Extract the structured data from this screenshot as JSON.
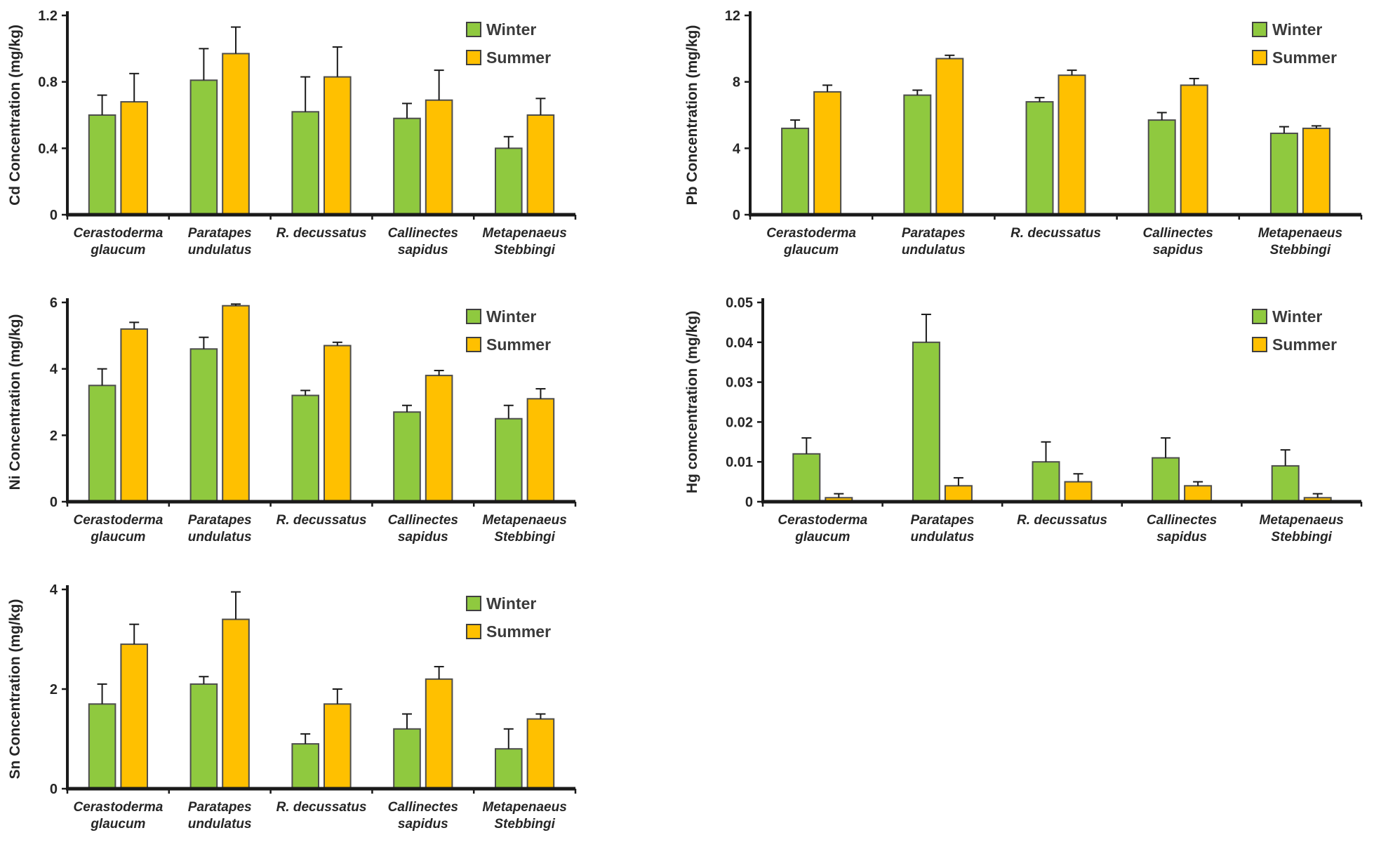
{
  "colors": {
    "winter": "#8FC93F",
    "summer": "#FFC000",
    "bar_outline": "#4d4d4d",
    "axis": "#1a1a1a",
    "text": "#262626",
    "legend_text": "#3b3b3b"
  },
  "legend": {
    "winter_label": "Winter",
    "summer_label": "Summer"
  },
  "chart_data": [
    {
      "type": "bar",
      "title": "",
      "ylabel": "Cd Concentration (mg/kg)",
      "xlabel": "",
      "ylim": [
        0,
        1.2
      ],
      "ytick_labels": [
        "0",
        "0.4",
        "0.8",
        "1.2"
      ],
      "grid": false,
      "legend_position": "top-right",
      "categories": [
        "Cerastoderma glaucum",
        "Paratapes undulatus",
        "R. decussatus",
        "Callinectes sapidus",
        "Metapenaeus Stebbingi"
      ],
      "category_label_lines": [
        [
          "Cerastoderma",
          "glaucum"
        ],
        [
          "Paratapes",
          "undulatus"
        ],
        [
          "R. decussatus"
        ],
        [
          "Callinectes",
          "sapidus"
        ],
        [
          "Metapenaeus",
          "Stebbingi"
        ]
      ],
      "series": [
        {
          "name": "Winter",
          "color_key": "winter",
          "values": [
            0.6,
            0.81,
            0.62,
            0.58,
            0.4
          ],
          "errors": [
            0.12,
            0.19,
            0.21,
            0.09,
            0.07
          ]
        },
        {
          "name": "Summer",
          "color_key": "summer",
          "values": [
            0.68,
            0.97,
            0.83,
            0.69,
            0.6
          ],
          "errors": [
            0.17,
            0.16,
            0.18,
            0.18,
            0.1
          ]
        }
      ]
    },
    {
      "type": "bar",
      "title": "",
      "ylabel": "Pb Concentration (mg/kg)",
      "xlabel": "",
      "ylim": [
        0,
        12
      ],
      "ytick_labels": [
        "0",
        "4",
        "8",
        "12"
      ],
      "grid": false,
      "legend_position": "top-right",
      "categories": [
        "Cerastoderma glaucum",
        "Paratapes undulatus",
        "R. decussatus",
        "Callinectes sapidus",
        "Metapenaeus Stebbingi"
      ],
      "category_label_lines": [
        [
          "Cerastoderma",
          "glaucum"
        ],
        [
          "Paratapes",
          "undulatus"
        ],
        [
          "R. decussatus"
        ],
        [
          "Callinectes",
          "sapidus"
        ],
        [
          "Metapenaeus",
          "Stebbingi"
        ]
      ],
      "series": [
        {
          "name": "Winter",
          "color_key": "winter",
          "values": [
            5.2,
            7.2,
            6.8,
            5.7,
            4.9
          ],
          "errors": [
            0.5,
            0.3,
            0.25,
            0.45,
            0.4
          ]
        },
        {
          "name": "Summer",
          "color_key": "summer",
          "values": [
            7.4,
            9.4,
            8.4,
            7.8,
            5.2
          ],
          "errors": [
            0.4,
            0.2,
            0.3,
            0.4,
            0.15
          ]
        }
      ]
    },
    {
      "type": "bar",
      "title": "",
      "ylabel": "Ni Concentration (mg/kg)",
      "xlabel": "",
      "ylim": [
        0,
        6
      ],
      "ytick_labels": [
        "0",
        "2",
        "4",
        "6"
      ],
      "grid": false,
      "legend_position": "top-right",
      "categories": [
        "Cerastoderma glaucum",
        "Paratapes undulatus",
        "R. decussatus",
        "Callinectes sapidus",
        "Metapenaeus Stebbingi"
      ],
      "category_label_lines": [
        [
          "Cerastoderma",
          "glaucum"
        ],
        [
          "Paratapes",
          "undulatus"
        ],
        [
          "R. decussatus"
        ],
        [
          "Callinectes",
          "sapidus"
        ],
        [
          "Metapenaeus",
          "Stebbingi"
        ]
      ],
      "series": [
        {
          "name": "Winter",
          "color_key": "winter",
          "values": [
            3.5,
            4.6,
            3.2,
            2.7,
            2.5
          ],
          "errors": [
            0.5,
            0.35,
            0.15,
            0.2,
            0.4
          ]
        },
        {
          "name": "Summer",
          "color_key": "summer",
          "values": [
            5.2,
            5.9,
            4.7,
            3.8,
            3.1
          ],
          "errors": [
            0.2,
            0.05,
            0.1,
            0.15,
            0.3
          ]
        }
      ]
    },
    {
      "type": "bar",
      "title": "",
      "ylabel": "Hg comcentration (mg/kg)",
      "xlabel": "",
      "ylim": [
        0,
        0.05
      ],
      "ytick_labels": [
        "0",
        "0.01",
        "0.02",
        "0.03",
        "0.04",
        "0.05"
      ],
      "grid": false,
      "legend_position": "top-right",
      "categories": [
        "Cerastoderma glaucum",
        "Paratapes undulatus",
        "R. decussatus",
        "Callinectes sapidus",
        "Metapenaeus Stebbingi"
      ],
      "category_label_lines": [
        [
          "Cerastoderma",
          "glaucum"
        ],
        [
          "Paratapes",
          "undulatus"
        ],
        [
          "R. decussatus"
        ],
        [
          "Callinectes",
          "sapidus"
        ],
        [
          "Metapenaeus",
          "Stebbingi"
        ]
      ],
      "series": [
        {
          "name": "Winter",
          "color_key": "winter",
          "values": [
            0.012,
            0.04,
            0.01,
            0.011,
            0.009
          ],
          "errors": [
            0.004,
            0.007,
            0.005,
            0.005,
            0.004
          ]
        },
        {
          "name": "Summer",
          "color_key": "summer",
          "values": [
            0.001,
            0.004,
            0.005,
            0.004,
            0.001
          ],
          "errors": [
            0.001,
            0.002,
            0.002,
            0.001,
            0.001
          ]
        }
      ]
    },
    {
      "type": "bar",
      "title": "",
      "ylabel": "Sn Concentration (mg/kg)",
      "xlabel": "",
      "ylim": [
        0,
        4
      ],
      "ytick_labels": [
        "0",
        "2",
        "4"
      ],
      "grid": false,
      "legend_position": "top-right",
      "categories": [
        "Cerastoderma glaucum",
        "Paratapes undulatus",
        "R. decussatus",
        "Callinectes sapidus",
        "Metapenaeus Stebbingi"
      ],
      "category_label_lines": [
        [
          "Cerastoderma",
          "glaucum"
        ],
        [
          "Paratapes",
          "undulatus"
        ],
        [
          "R. decussatus"
        ],
        [
          "Callinectes",
          "sapidus"
        ],
        [
          "Metapenaeus",
          "Stebbingi"
        ]
      ],
      "series": [
        {
          "name": "Winter",
          "color_key": "winter",
          "values": [
            1.7,
            2.1,
            0.9,
            1.2,
            0.8
          ],
          "errors": [
            0.4,
            0.15,
            0.2,
            0.3,
            0.4
          ]
        },
        {
          "name": "Summer",
          "color_key": "summer",
          "values": [
            2.9,
            3.4,
            1.7,
            2.2,
            1.4
          ],
          "errors": [
            0.4,
            0.55,
            0.3,
            0.25,
            0.1
          ]
        }
      ]
    }
  ]
}
